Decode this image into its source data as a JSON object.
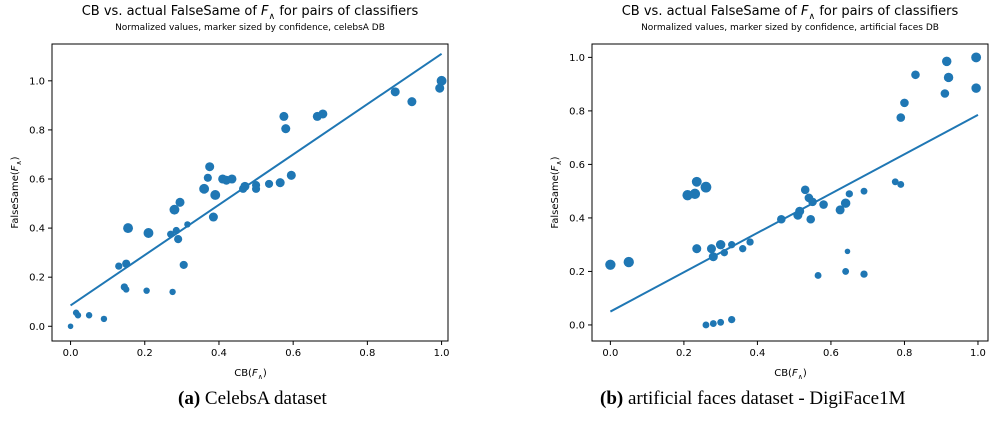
{
  "captions": [
    {
      "letter": "(a)",
      "text": "CelebsA dataset"
    },
    {
      "letter": "(b)",
      "text": "artificial faces dataset - DigiFace1M"
    }
  ],
  "colors": {
    "series": "#1f77b4"
  },
  "chart_data": [
    {
      "type": "scatter",
      "title_parts": [
        "CB vs. actual FalseSame of ",
        "F",
        "∧",
        "  for pairs of classifiers"
      ],
      "subtitle": "Normalized values, marker sized by confidence, celebsA DB",
      "xlabel_parts": [
        "CB(",
        "F",
        "∧",
        ")"
      ],
      "ylabel_parts": [
        "FalseSame(",
        "F",
        "∧",
        ")"
      ],
      "xlim": [
        -0.05,
        1.02
      ],
      "ylim": [
        -0.06,
        1.15
      ],
      "xticks": [
        "0.0",
        "0.2",
        "0.4",
        "0.6",
        "0.8",
        "1.0"
      ],
      "yticks": [
        "0.0",
        "0.2",
        "0.4",
        "0.6",
        "0.8",
        "1.0"
      ],
      "grid": false,
      "fit_line": {
        "x": [
          0.0,
          1.0
        ],
        "y": [
          0.085,
          1.11
        ]
      },
      "points": [
        {
          "x": 0.0,
          "y": 0.0,
          "c": 0.3
        },
        {
          "x": 0.015,
          "y": 0.055,
          "c": 0.4
        },
        {
          "x": 0.02,
          "y": 0.045,
          "c": 0.4
        },
        {
          "x": 0.05,
          "y": 0.045,
          "c": 0.4
        },
        {
          "x": 0.09,
          "y": 0.03,
          "c": 0.4
        },
        {
          "x": 0.13,
          "y": 0.245,
          "c": 0.5
        },
        {
          "x": 0.15,
          "y": 0.255,
          "c": 0.6
        },
        {
          "x": 0.145,
          "y": 0.16,
          "c": 0.5
        },
        {
          "x": 0.15,
          "y": 0.15,
          "c": 0.4
        },
        {
          "x": 0.155,
          "y": 0.4,
          "c": 0.8
        },
        {
          "x": 0.205,
          "y": 0.145,
          "c": 0.4
        },
        {
          "x": 0.21,
          "y": 0.38,
          "c": 0.8
        },
        {
          "x": 0.27,
          "y": 0.375,
          "c": 0.5
        },
        {
          "x": 0.275,
          "y": 0.14,
          "c": 0.4
        },
        {
          "x": 0.28,
          "y": 0.475,
          "c": 0.8
        },
        {
          "x": 0.285,
          "y": 0.39,
          "c": 0.5
        },
        {
          "x": 0.29,
          "y": 0.355,
          "c": 0.6
        },
        {
          "x": 0.295,
          "y": 0.505,
          "c": 0.7
        },
        {
          "x": 0.305,
          "y": 0.25,
          "c": 0.6
        },
        {
          "x": 0.315,
          "y": 0.415,
          "c": 0.4
        },
        {
          "x": 0.36,
          "y": 0.56,
          "c": 0.8
        },
        {
          "x": 0.37,
          "y": 0.605,
          "c": 0.6
        },
        {
          "x": 0.375,
          "y": 0.65,
          "c": 0.7
        },
        {
          "x": 0.385,
          "y": 0.445,
          "c": 0.7
        },
        {
          "x": 0.39,
          "y": 0.535,
          "c": 0.8
        },
        {
          "x": 0.41,
          "y": 0.6,
          "c": 0.7
        },
        {
          "x": 0.42,
          "y": 0.595,
          "c": 0.7
        },
        {
          "x": 0.435,
          "y": 0.6,
          "c": 0.7
        },
        {
          "x": 0.465,
          "y": 0.56,
          "c": 0.6
        },
        {
          "x": 0.47,
          "y": 0.57,
          "c": 0.7
        },
        {
          "x": 0.5,
          "y": 0.575,
          "c": 0.6
        },
        {
          "x": 0.5,
          "y": 0.56,
          "c": 0.6
        },
        {
          "x": 0.535,
          "y": 0.58,
          "c": 0.6
        },
        {
          "x": 0.565,
          "y": 0.585,
          "c": 0.7
        },
        {
          "x": 0.575,
          "y": 0.855,
          "c": 0.7
        },
        {
          "x": 0.58,
          "y": 0.805,
          "c": 0.7
        },
        {
          "x": 0.595,
          "y": 0.615,
          "c": 0.7
        },
        {
          "x": 0.665,
          "y": 0.855,
          "c": 0.7
        },
        {
          "x": 0.68,
          "y": 0.865,
          "c": 0.7
        },
        {
          "x": 0.875,
          "y": 0.955,
          "c": 0.7
        },
        {
          "x": 0.92,
          "y": 0.915,
          "c": 0.7
        },
        {
          "x": 0.995,
          "y": 0.97,
          "c": 0.7
        },
        {
          "x": 1.0,
          "y": 1.0,
          "c": 0.8
        }
      ]
    },
    {
      "type": "scatter",
      "title_parts": [
        "CB vs. actual FalseSame of ",
        "F",
        "∧",
        "  for pairs of classifiers"
      ],
      "subtitle": "Normalized values, marker sized by confidence, artificial faces DB",
      "xlabel_parts": [
        "CB(",
        "F",
        "∧",
        ")"
      ],
      "ylabel_parts": [
        "FalseSame(",
        "F",
        "∧",
        ")"
      ],
      "xlim": [
        -0.05,
        1.03
      ],
      "ylim": [
        -0.06,
        1.05
      ],
      "xticks": [
        "0.0",
        "0.2",
        "0.4",
        "0.6",
        "0.8",
        "1.0"
      ],
      "yticks": [
        "0.0",
        "0.2",
        "0.4",
        "0.6",
        "0.8",
        "1.0"
      ],
      "grid": false,
      "fit_line": {
        "x": [
          0.0,
          1.0
        ],
        "y": [
          0.05,
          0.785
        ]
      },
      "points": [
        {
          "x": 0.0,
          "y": 0.225,
          "c": 0.85
        },
        {
          "x": 0.05,
          "y": 0.235,
          "c": 0.85
        },
        {
          "x": 0.21,
          "y": 0.485,
          "c": 0.85
        },
        {
          "x": 0.23,
          "y": 0.49,
          "c": 0.85
        },
        {
          "x": 0.235,
          "y": 0.535,
          "c": 0.8
        },
        {
          "x": 0.26,
          "y": 0.515,
          "c": 0.9
        },
        {
          "x": 0.235,
          "y": 0.285,
          "c": 0.7
        },
        {
          "x": 0.26,
          "y": 0.0,
          "c": 0.45
        },
        {
          "x": 0.28,
          "y": 0.005,
          "c": 0.45
        },
        {
          "x": 0.3,
          "y": 0.01,
          "c": 0.45
        },
        {
          "x": 0.33,
          "y": 0.02,
          "c": 0.5
        },
        {
          "x": 0.275,
          "y": 0.285,
          "c": 0.7
        },
        {
          "x": 0.28,
          "y": 0.255,
          "c": 0.7
        },
        {
          "x": 0.3,
          "y": 0.3,
          "c": 0.75
        },
        {
          "x": 0.31,
          "y": 0.27,
          "c": 0.5
        },
        {
          "x": 0.33,
          "y": 0.3,
          "c": 0.5
        },
        {
          "x": 0.36,
          "y": 0.285,
          "c": 0.5
        },
        {
          "x": 0.38,
          "y": 0.31,
          "c": 0.5
        },
        {
          "x": 0.465,
          "y": 0.395,
          "c": 0.65
        },
        {
          "x": 0.51,
          "y": 0.41,
          "c": 0.7
        },
        {
          "x": 0.515,
          "y": 0.425,
          "c": 0.7
        },
        {
          "x": 0.53,
          "y": 0.505,
          "c": 0.65
        },
        {
          "x": 0.54,
          "y": 0.475,
          "c": 0.65
        },
        {
          "x": 0.545,
          "y": 0.395,
          "c": 0.65
        },
        {
          "x": 0.55,
          "y": 0.46,
          "c": 0.65
        },
        {
          "x": 0.565,
          "y": 0.185,
          "c": 0.45
        },
        {
          "x": 0.58,
          "y": 0.45,
          "c": 0.65
        },
        {
          "x": 0.625,
          "y": 0.43,
          "c": 0.7
        },
        {
          "x": 0.64,
          "y": 0.455,
          "c": 0.75
        },
        {
          "x": 0.64,
          "y": 0.2,
          "c": 0.45
        },
        {
          "x": 0.645,
          "y": 0.275,
          "c": 0.3
        },
        {
          "x": 0.65,
          "y": 0.49,
          "c": 0.5
        },
        {
          "x": 0.69,
          "y": 0.19,
          "c": 0.5
        },
        {
          "x": 0.69,
          "y": 0.5,
          "c": 0.45
        },
        {
          "x": 0.775,
          "y": 0.535,
          "c": 0.45
        },
        {
          "x": 0.79,
          "y": 0.525,
          "c": 0.45
        },
        {
          "x": 0.79,
          "y": 0.775,
          "c": 0.65
        },
        {
          "x": 0.8,
          "y": 0.83,
          "c": 0.65
        },
        {
          "x": 0.83,
          "y": 0.935,
          "c": 0.65
        },
        {
          "x": 0.91,
          "y": 0.865,
          "c": 0.65
        },
        {
          "x": 0.915,
          "y": 0.985,
          "c": 0.75
        },
        {
          "x": 0.92,
          "y": 0.925,
          "c": 0.75
        },
        {
          "x": 0.995,
          "y": 0.885,
          "c": 0.75
        },
        {
          "x": 0.995,
          "y": 1.0,
          "c": 0.8
        }
      ]
    }
  ]
}
